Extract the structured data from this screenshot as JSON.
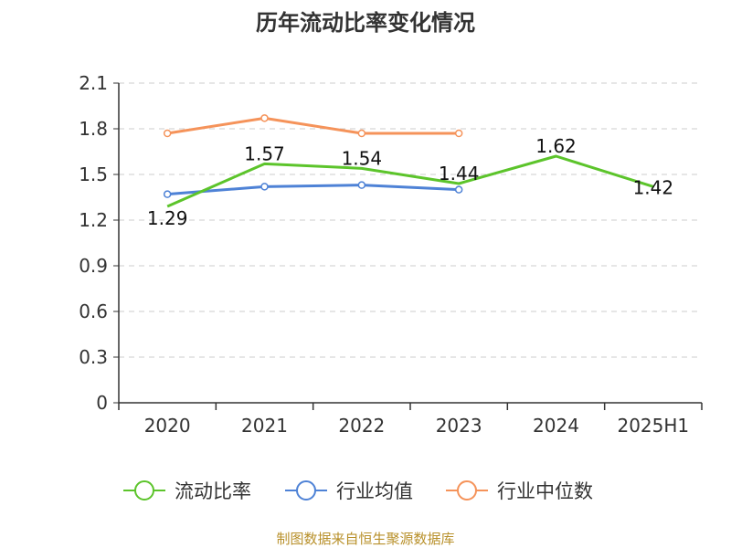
{
  "chart_data": {
    "type": "line",
    "title": "历年流动比率变化情况",
    "categories": [
      "2020",
      "2021",
      "2022",
      "2023",
      "2024",
      "2025H1"
    ],
    "ylim": [
      0,
      2.1
    ],
    "yticks": [
      "0",
      "0.3",
      "0.6",
      "0.9",
      "1.2",
      "1.5",
      "1.8",
      "2.1"
    ],
    "grid": "horizontal-dashed",
    "legend_position": "bottom",
    "series": [
      {
        "name": "流动比率",
        "color": "#5cc42b",
        "values": [
          1.29,
          1.57,
          1.54,
          1.44,
          1.62,
          1.42
        ],
        "labels": [
          "1.29",
          "1.57",
          "1.54",
          "1.44",
          "1.62",
          "1.42"
        ]
      },
      {
        "name": "行业均值",
        "color": "#4e82d6",
        "values": [
          1.37,
          1.42,
          1.43,
          1.4,
          null,
          null
        ]
      },
      {
        "name": "行业中位数",
        "color": "#f5935a",
        "values": [
          1.77,
          1.87,
          1.77,
          1.77,
          null,
          null
        ]
      }
    ],
    "source": "制图数据来自恒生聚源数据库"
  }
}
